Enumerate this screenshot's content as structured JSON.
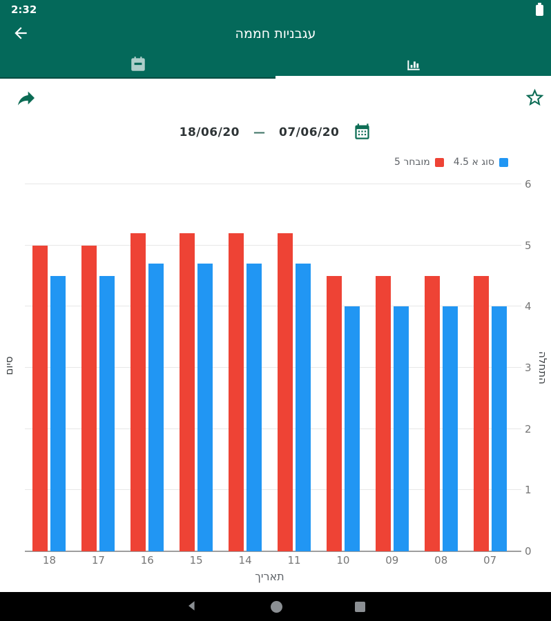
{
  "status_bar": {
    "time": "2:32",
    "battery_icon": "battery-full"
  },
  "app_bar": {
    "title": "עגבניות חממה",
    "back_icon": "arrow-back"
  },
  "tabs": [
    {
      "name": "calendar",
      "icon": "calendar-icon",
      "active": false
    },
    {
      "name": "chart",
      "icon": "bar-chart-icon",
      "active": true
    }
  ],
  "actions": {
    "share_icon": "share-forward-arrow",
    "favorite_icon": "star-outline"
  },
  "date_range": {
    "start": "07/06/20",
    "end": "18/06/20",
    "separator": "—",
    "picker_icon": "calendar"
  },
  "legend": [
    {
      "label": "סוג א 4.5",
      "color": "#2196f3"
    },
    {
      "label": "מובחר 5",
      "color": "#ee4335"
    }
  ],
  "chart_data": {
    "type": "bar",
    "direction": "rtl",
    "categories": [
      "18",
      "17",
      "16",
      "15",
      "14",
      "11",
      "10",
      "09",
      "08",
      "07"
    ],
    "series": [
      {
        "name": "מובחר 5",
        "color": "#ee4335",
        "values": [
          5.0,
          5.0,
          5.2,
          5.2,
          5.2,
          5.2,
          4.5,
          4.5,
          4.5,
          4.5
        ]
      },
      {
        "name": "סוג א 4.5",
        "color": "#2196f3",
        "values": [
          4.5,
          4.5,
          4.7,
          4.7,
          4.7,
          4.7,
          4.0,
          4.0,
          4.0,
          4.0
        ]
      }
    ],
    "xlabel": "תאריך",
    "ylabel_left": "סיום",
    "ylabel_right": "התחלה",
    "ylim": [
      0,
      6
    ],
    "yticks": [
      0,
      1,
      2,
      3,
      4,
      5,
      6
    ],
    "grid": true,
    "legend_position": "top-right"
  },
  "nav_bar": {
    "back_icon": "nav-back-triangle",
    "home_icon": "nav-home-circle",
    "recents_icon": "nav-recents-square"
  }
}
